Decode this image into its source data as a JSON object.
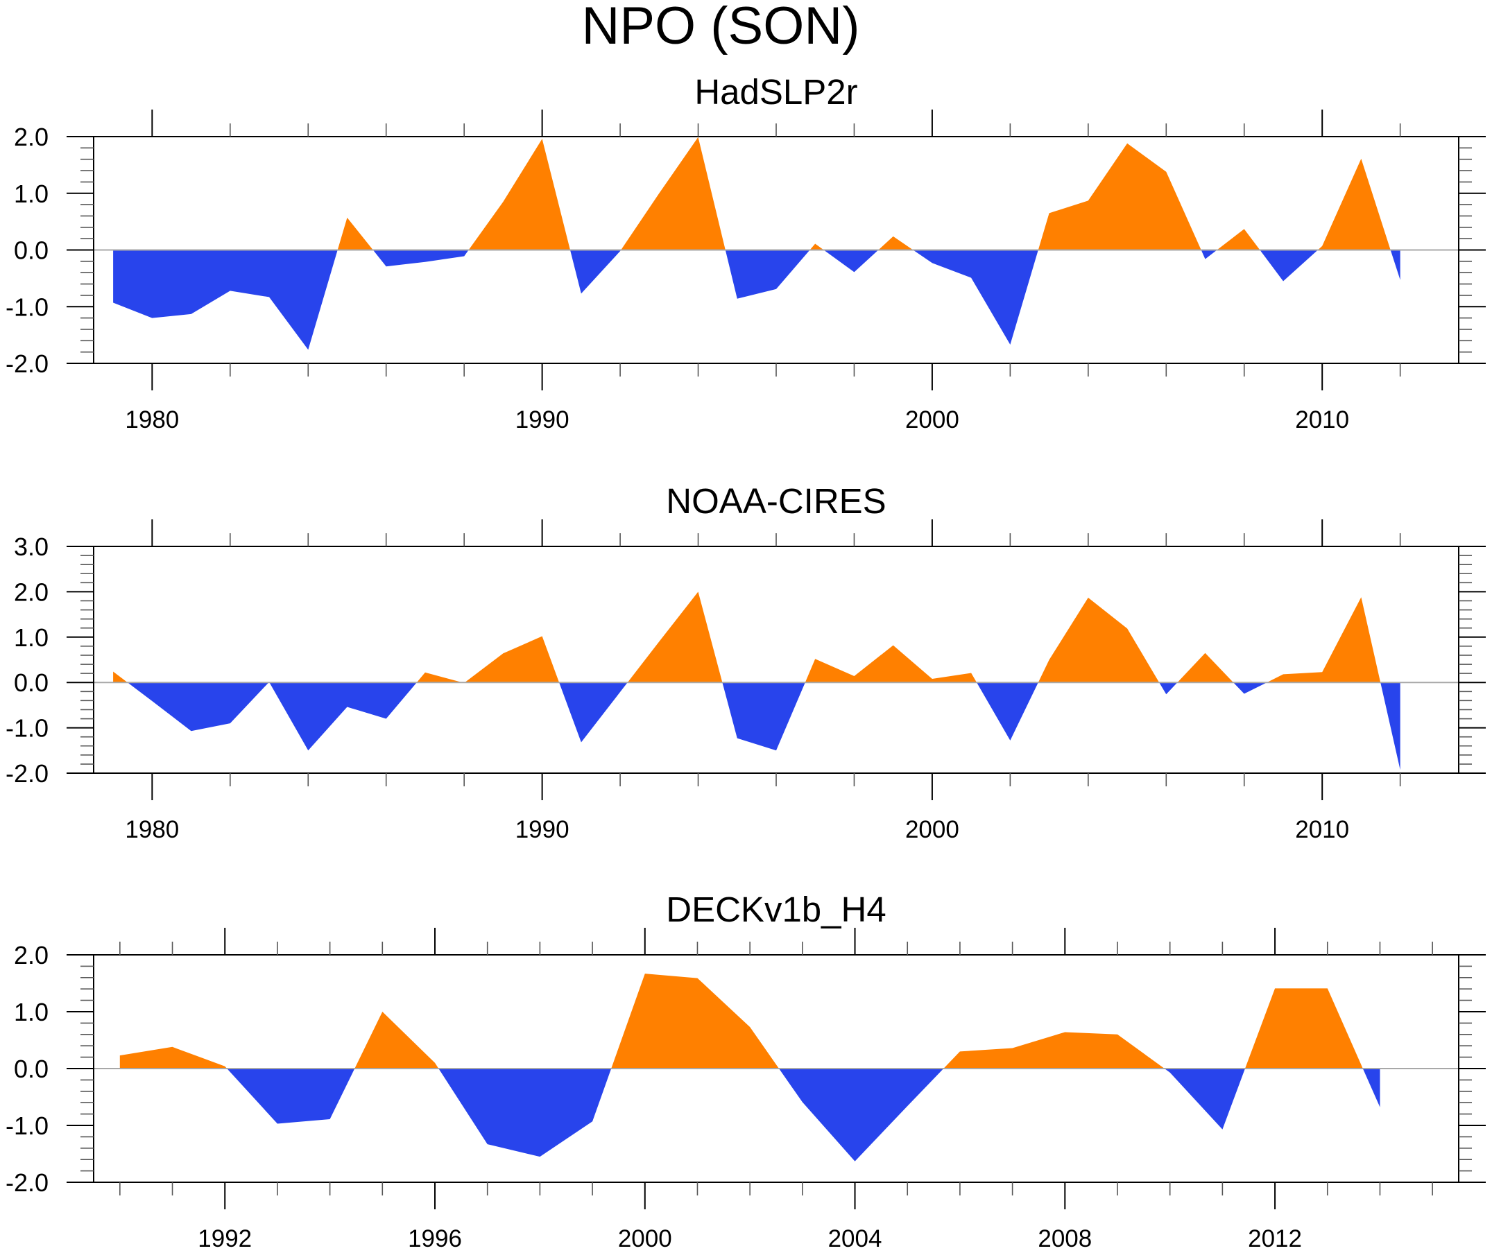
{
  "figure": {
    "title": "NPO (SON)"
  },
  "colors": {
    "positive": "#FF8000",
    "negative": "#2844EC",
    "reference_line": "#A8A8A8",
    "axes": "#000000"
  },
  "chart_data": [
    {
      "type": "area",
      "title": "HadSLP2r",
      "xlabel": "",
      "ylabel": "",
      "xlim": [
        1978.5,
        2013.5
      ],
      "ylim": [
        -2.0,
        2.0
      ],
      "reference_value": 0.0,
      "fill_above": "positive",
      "fill_below": "negative",
      "x_major_ticks": [
        1980,
        1990,
        2000,
        2010
      ],
      "x_tick_labels": [
        "1980",
        "1990",
        "2000",
        "2010"
      ],
      "x_minor_step": 2,
      "y_major_ticks": [
        2.0,
        1.0,
        0.0,
        -1.0,
        -2.0
      ],
      "y_tick_labels": [
        "2.0",
        "1.0",
        "0.0",
        "-1.0",
        "-2.0"
      ],
      "y_minor_step": 0.2,
      "grid": false,
      "x": [
        1979,
        1980,
        1981,
        1982,
        1983,
        1984,
        1985,
        1986,
        1987,
        1988,
        1989,
        1990,
        1991,
        1992,
        1993,
        1994,
        1995,
        1996,
        1997,
        1998,
        1999,
        2000,
        2001,
        2002,
        2003,
        2004,
        2005,
        2006,
        2007,
        2008,
        2009,
        2010,
        2011,
        2012
      ],
      "values": [
        -0.93,
        -1.2,
        -1.13,
        -0.72,
        -0.83,
        -1.76,
        0.57,
        -0.29,
        -0.21,
        -0.11,
        0.85,
        1.96,
        -0.77,
        -0.02,
        1.0,
        1.99,
        -0.86,
        -0.69,
        0.11,
        -0.39,
        0.24,
        -0.23,
        -0.49,
        -1.67,
        0.65,
        0.87,
        1.88,
        1.38,
        -0.16,
        0.37,
        -0.55,
        0.07,
        1.61,
        -0.53
      ]
    },
    {
      "type": "area",
      "title": "NOAA-CIRES",
      "xlabel": "",
      "ylabel": "",
      "xlim": [
        1978.5,
        2013.5
      ],
      "ylim": [
        -2.0,
        3.0
      ],
      "reference_value": 0.0,
      "fill_above": "positive",
      "fill_below": "negative",
      "x_major_ticks": [
        1980,
        1990,
        2000,
        2010
      ],
      "x_tick_labels": [
        "1980",
        "1990",
        "2000",
        "2010"
      ],
      "x_minor_step": 2,
      "y_major_ticks": [
        3.0,
        2.0,
        1.0,
        0.0,
        -1.0,
        -2.0
      ],
      "y_tick_labels": [
        "3.0",
        "2.0",
        "1.0",
        "0.0",
        "-1.0",
        "-2.0"
      ],
      "y_minor_step": 0.2,
      "grid": false,
      "x": [
        1979,
        1980,
        1981,
        1982,
        1983,
        1984,
        1985,
        1986,
        1987,
        1988,
        1989,
        1990,
        1991,
        1992,
        1993,
        1994,
        1995,
        1996,
        1997,
        1998,
        1999,
        2000,
        2001,
        2002,
        2003,
        2004,
        2005,
        2006,
        2007,
        2008,
        2009,
        2010,
        2011,
        2012
      ],
      "values": [
        0.24,
        -0.41,
        -1.07,
        -0.9,
        0.01,
        -1.5,
        -0.54,
        -0.8,
        0.22,
        -0.01,
        0.64,
        1.02,
        -1.32,
        -0.21,
        0.9,
        2.0,
        -1.23,
        -1.5,
        0.52,
        0.14,
        0.82,
        0.08,
        0.21,
        -1.28,
        0.5,
        1.87,
        1.19,
        -0.26,
        0.65,
        -0.25,
        0.18,
        0.23,
        1.88,
        -1.93
      ]
    },
    {
      "type": "area",
      "title": "DECKv1b_H4",
      "xlabel": "",
      "ylabel": "",
      "xlim": [
        1989.5,
        2015.5
      ],
      "ylim": [
        -2.0,
        2.0
      ],
      "reference_value": 0.0,
      "fill_above": "positive",
      "fill_below": "negative",
      "x_major_ticks": [
        1992,
        1996,
        2000,
        2004,
        2008,
        2012
      ],
      "x_tick_labels": [
        "1992",
        "1996",
        "2000",
        "2004",
        "2008",
        "2012"
      ],
      "x_minor_step": 1,
      "y_major_ticks": [
        2.0,
        1.0,
        0.0,
        -1.0,
        -2.0
      ],
      "y_tick_labels": [
        "2.0",
        "1.0",
        "0.0",
        "-1.0",
        "-2.0"
      ],
      "y_minor_step": 0.2,
      "grid": false,
      "x": [
        1990,
        1991,
        1992,
        1993,
        1994,
        1995,
        1996,
        1997,
        1998,
        1999,
        2000,
        2001,
        2002,
        2003,
        2004,
        2005,
        2006,
        2007,
        2008,
        2009,
        2010,
        2011,
        2012,
        2013,
        2014
      ],
      "values": [
        0.23,
        0.38,
        0.04,
        -0.97,
        -0.89,
        1.0,
        0.1,
        -1.33,
        -1.55,
        -0.93,
        1.67,
        1.59,
        0.73,
        -0.59,
        -1.63,
        -0.66,
        0.3,
        0.36,
        0.64,
        0.6,
        -0.07,
        -1.07,
        1.41,
        1.41,
        -0.68
      ]
    }
  ]
}
